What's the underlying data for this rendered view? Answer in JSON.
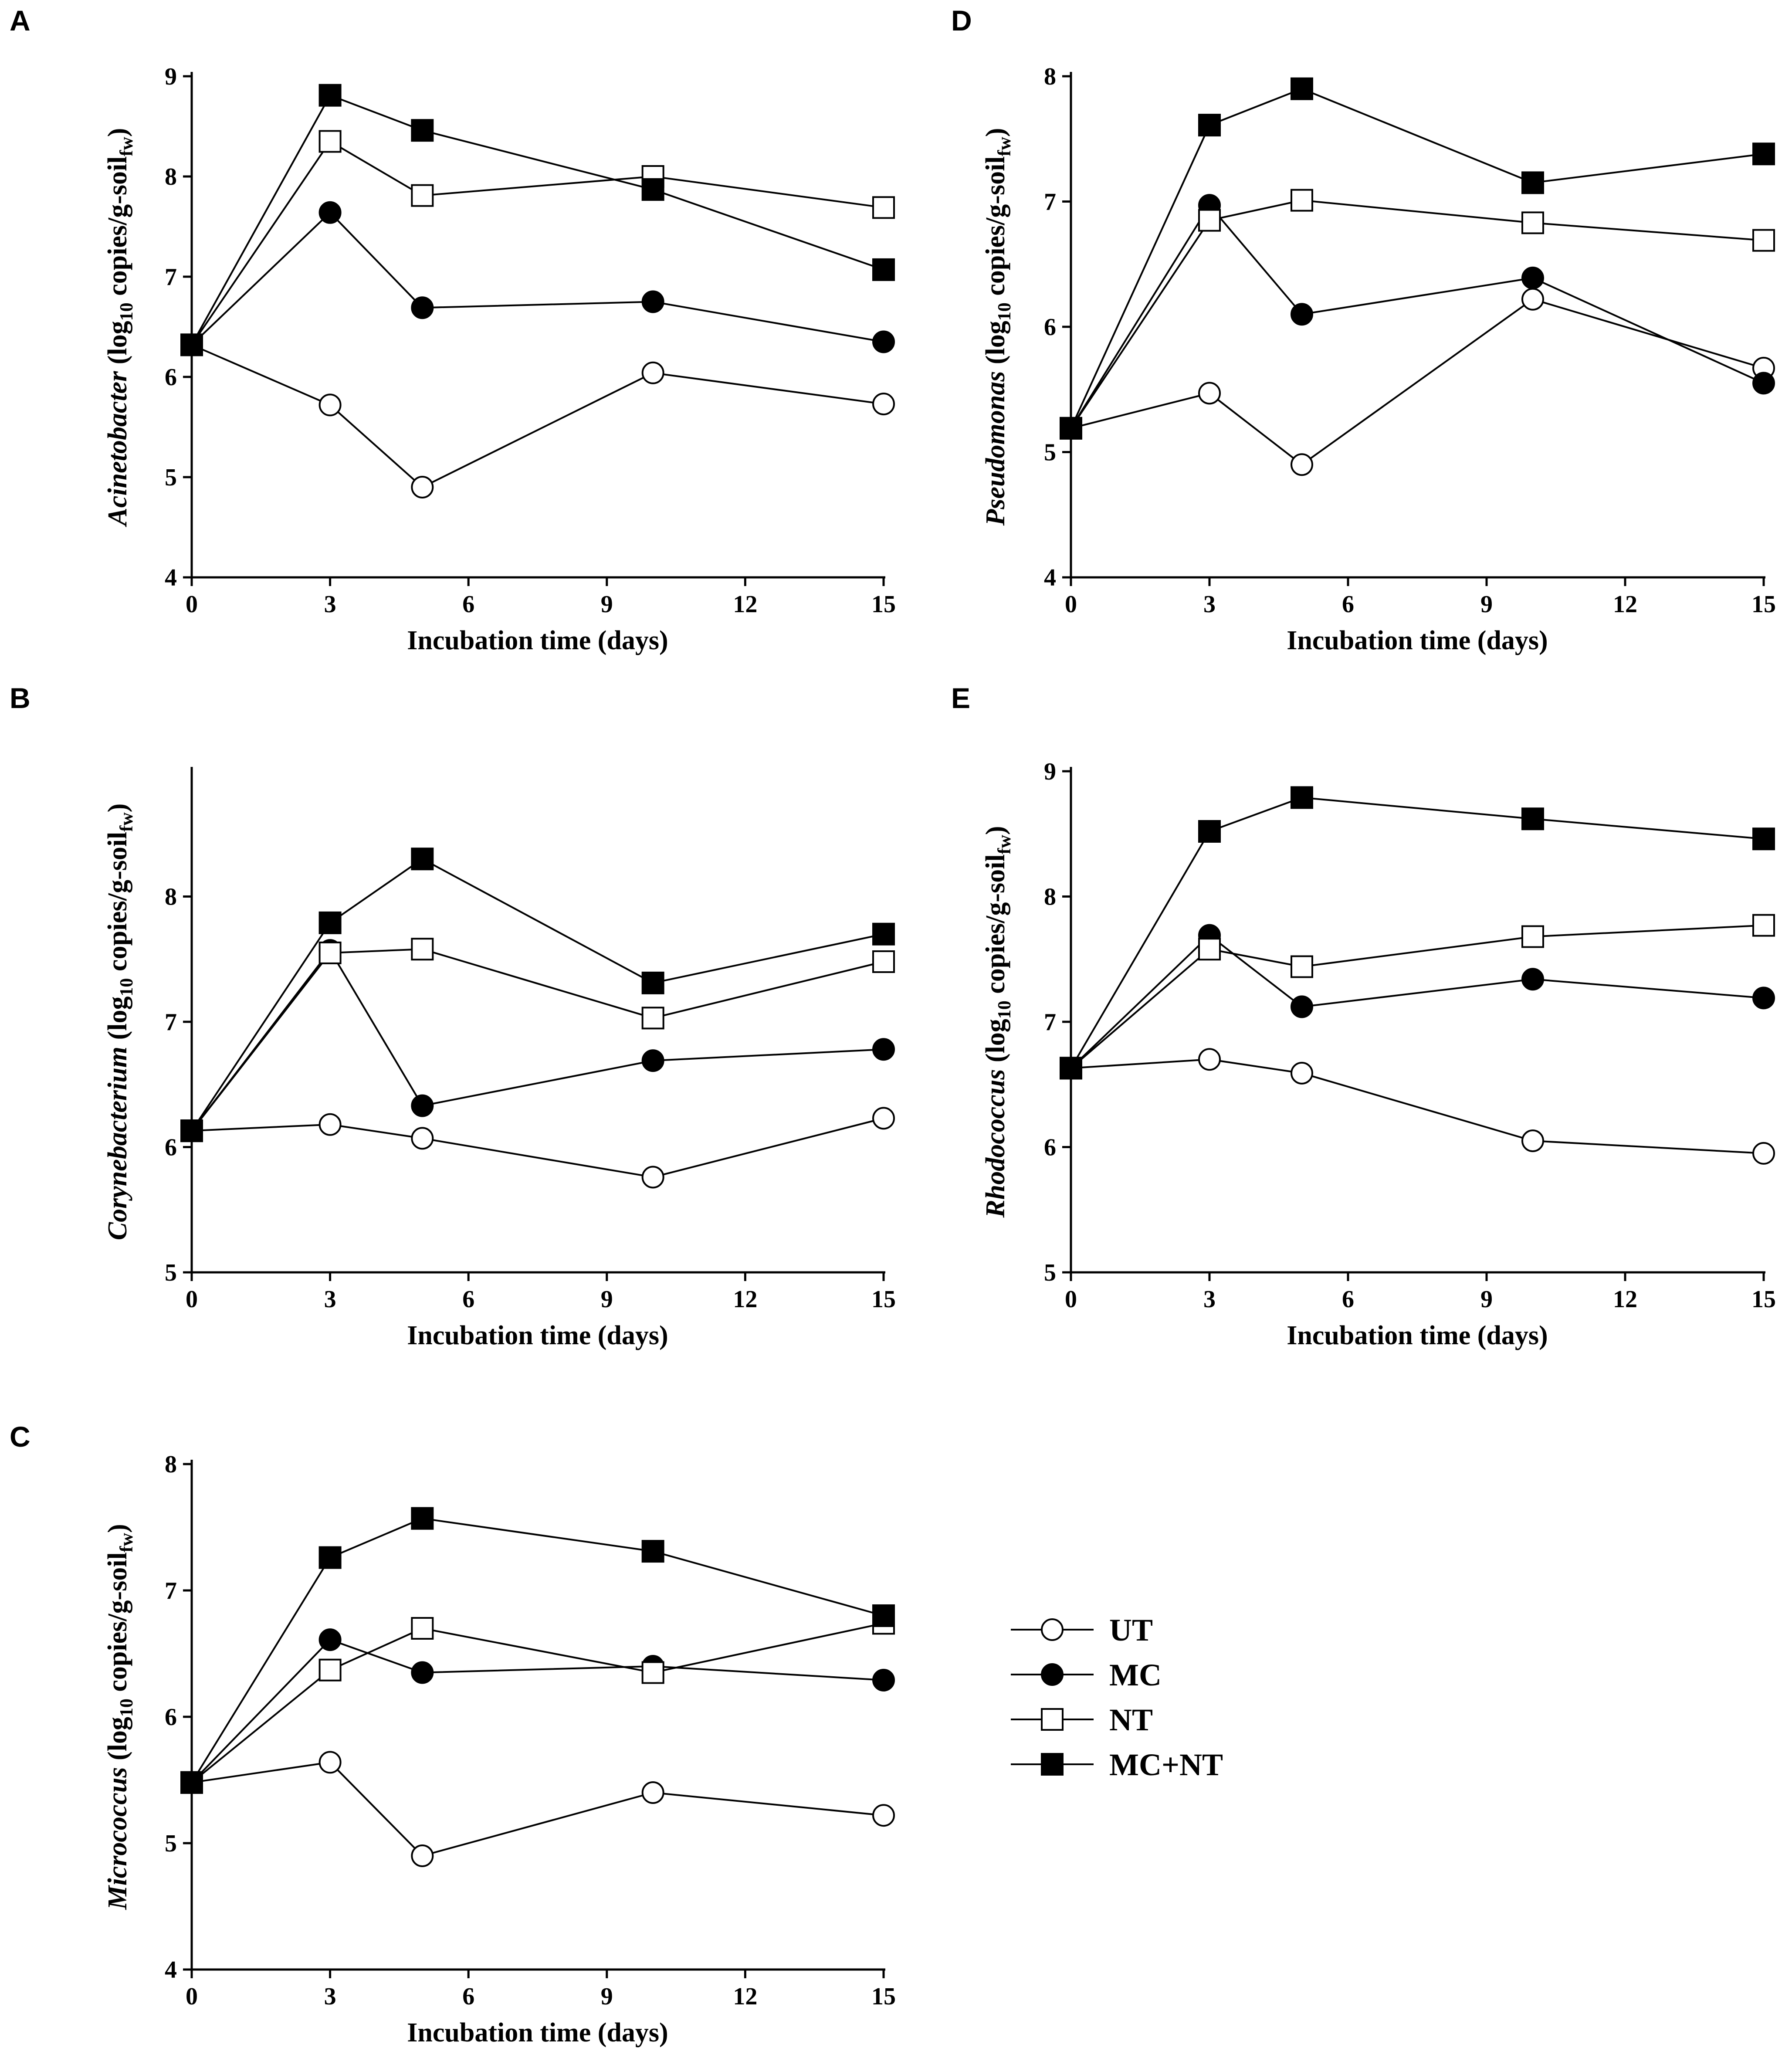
{
  "figure": {
    "legend": [
      {
        "name": "UT",
        "marker": "circle",
        "filled": false
      },
      {
        "name": "MC",
        "marker": "circle",
        "filled": true
      },
      {
        "name": "NT",
        "marker": "square",
        "filled": false
      },
      {
        "name": "MC+NT",
        "marker": "square",
        "filled": true
      }
    ]
  },
  "chart_data": [
    {
      "panel": "A",
      "type": "line",
      "xlabel": "Incubation time (days)",
      "ylabel": {
        "genus": "Acinetobacter",
        "unit_pre": " (log",
        "sub1": "10",
        "unit_mid": " copies/g-soil",
        "sub2": "fw",
        "unit_post": ")"
      },
      "xlim": [
        0,
        15
      ],
      "xticks": [
        0,
        3,
        6,
        9,
        12,
        15
      ],
      "ylim": [
        4,
        9
      ],
      "yticks": [
        4,
        5,
        6,
        7,
        8,
        9
      ],
      "x": [
        0,
        3,
        5,
        10,
        15
      ],
      "series": [
        {
          "name": "UT",
          "values": [
            6.32,
            5.72,
            4.9,
            6.04,
            5.73
          ]
        },
        {
          "name": "MC",
          "values": [
            6.32,
            7.64,
            6.69,
            6.75,
            6.35
          ]
        },
        {
          "name": "NT",
          "values": [
            6.32,
            8.35,
            7.81,
            8.0,
            7.69
          ]
        },
        {
          "name": "MC+NT",
          "values": [
            6.32,
            8.81,
            8.46,
            7.87,
            7.07
          ]
        }
      ]
    },
    {
      "panel": "B",
      "type": "line",
      "xlabel": "Incubation time (days)",
      "ylabel": {
        "genus": "Corynebacterium",
        "unit_pre": " (log",
        "sub1": "10",
        "unit_mid": " copies/g-soil",
        "sub2": "fw",
        "unit_post": ")"
      },
      "xlim": [
        0,
        15
      ],
      "xticks": [
        0,
        3,
        6,
        9,
        12,
        15
      ],
      "ylim": [
        5,
        9
      ],
      "yticks": [
        5,
        6,
        7,
        8
      ],
      "x": [
        0,
        3,
        5,
        10,
        15
      ],
      "series": [
        {
          "name": "UT",
          "values": [
            6.13,
            6.18,
            6.07,
            5.76,
            6.23
          ]
        },
        {
          "name": "MC",
          "values": [
            6.13,
            7.57,
            6.33,
            6.69,
            6.78
          ]
        },
        {
          "name": "NT",
          "values": [
            6.13,
            7.55,
            7.58,
            7.03,
            7.48
          ]
        },
        {
          "name": "MC+NT",
          "values": [
            6.13,
            7.79,
            8.3,
            7.31,
            7.7
          ]
        }
      ]
    },
    {
      "panel": "C",
      "type": "line",
      "xlabel": "Incubation time (days)",
      "ylabel": {
        "genus": "Micrococcus",
        "unit_pre": " (log",
        "sub1": "10",
        "unit_mid": " copies/g-soil",
        "sub2": "fw",
        "unit_post": ")"
      },
      "xlim": [
        0,
        15
      ],
      "xticks": [
        0,
        3,
        6,
        9,
        12,
        15
      ],
      "ylim": [
        4,
        8
      ],
      "yticks": [
        4,
        5,
        6,
        7,
        8
      ],
      "x": [
        0,
        3,
        5,
        10,
        15
      ],
      "series": [
        {
          "name": "UT",
          "values": [
            5.48,
            5.64,
            4.9,
            5.4,
            5.22
          ]
        },
        {
          "name": "MC",
          "values": [
            5.48,
            6.61,
            6.35,
            6.4,
            6.29
          ]
        },
        {
          "name": "NT",
          "values": [
            5.48,
            6.37,
            6.7,
            6.35,
            6.74
          ]
        },
        {
          "name": "MC+NT",
          "values": [
            5.48,
            7.26,
            7.57,
            7.31,
            6.8
          ]
        }
      ]
    },
    {
      "panel": "D",
      "type": "line",
      "xlabel": "Incubation time (days)",
      "ylabel": {
        "genus": "Pseudomonas",
        "unit_pre": " (log",
        "sub1": "10",
        "unit_mid": " copies/g-soil",
        "sub2": "fw",
        "unit_post": ")"
      },
      "xlim": [
        0,
        15
      ],
      "xticks": [
        0,
        3,
        6,
        9,
        12,
        15
      ],
      "ylim": [
        4,
        8
      ],
      "yticks": [
        4,
        5,
        6,
        7,
        8
      ],
      "x": [
        0,
        3,
        5,
        10,
        15
      ],
      "series": [
        {
          "name": "UT",
          "values": [
            5.19,
            5.47,
            4.9,
            6.22,
            5.67
          ]
        },
        {
          "name": "MC",
          "values": [
            5.19,
            6.97,
            6.1,
            6.39,
            5.55
          ]
        },
        {
          "name": "NT",
          "values": [
            5.19,
            6.85,
            7.01,
            6.83,
            6.69
          ]
        },
        {
          "name": "MC+NT",
          "values": [
            5.19,
            7.61,
            7.9,
            7.15,
            7.38
          ]
        }
      ]
    },
    {
      "panel": "E",
      "type": "line",
      "xlabel": "Incubation time (days)",
      "ylabel": {
        "genus": "Rhodococcus",
        "unit_pre": " (log",
        "sub1": "10",
        "unit_mid": " copies/g-soil",
        "sub2": "fw",
        "unit_post": ")"
      },
      "xlim": [
        0,
        15
      ],
      "xticks": [
        0,
        3,
        6,
        9,
        12,
        15
      ],
      "ylim": [
        5,
        9
      ],
      "yticks": [
        5,
        6,
        7,
        8,
        9
      ],
      "x": [
        0,
        3,
        5,
        10,
        15
      ],
      "series": [
        {
          "name": "UT",
          "values": [
            6.63,
            6.7,
            6.59,
            6.05,
            5.95
          ]
        },
        {
          "name": "MC",
          "values": [
            6.63,
            7.69,
            7.12,
            7.34,
            7.19
          ]
        },
        {
          "name": "NT",
          "values": [
            6.63,
            7.58,
            7.44,
            7.68,
            7.77
          ]
        },
        {
          "name": "MC+NT",
          "values": [
            6.63,
            8.52,
            8.79,
            8.62,
            8.46
          ]
        }
      ]
    }
  ]
}
